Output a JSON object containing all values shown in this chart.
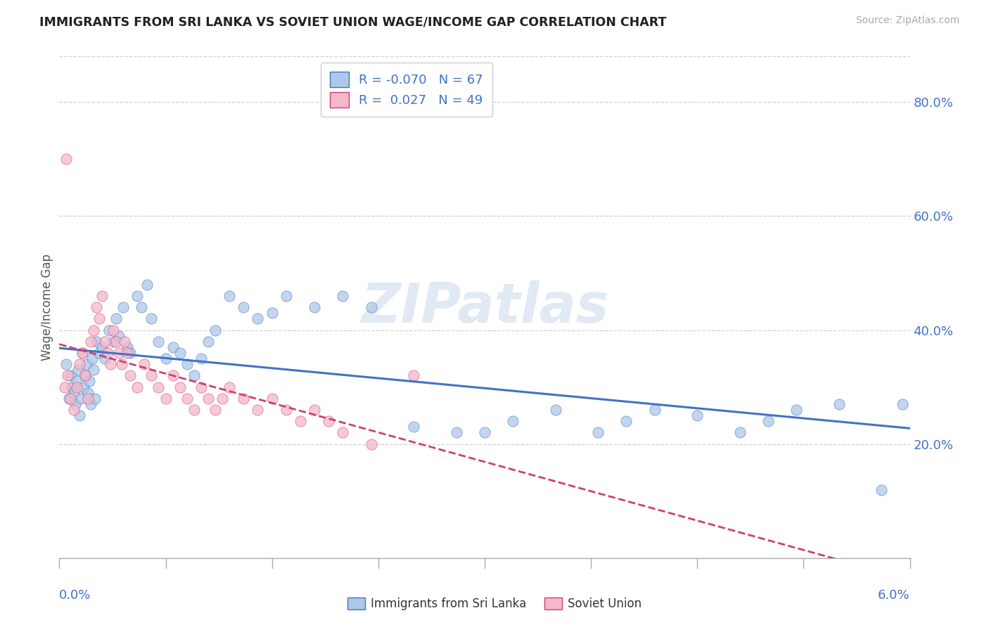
{
  "title": "IMMIGRANTS FROM SRI LANKA VS SOVIET UNION WAGE/INCOME GAP CORRELATION CHART",
  "source": "Source: ZipAtlas.com",
  "ylabel": "Wage/Income Gap",
  "watermark": "ZIPatlas",
  "legend_entries": [
    {
      "label": "Immigrants from Sri Lanka",
      "R": -0.07,
      "N": 67,
      "color": "#adc8e8",
      "line_color": "#4472c4"
    },
    {
      "label": "Soviet Union",
      "R": 0.027,
      "N": 49,
      "color": "#f4b8c8",
      "line_color": "#d47090"
    }
  ],
  "xlim": [
    0.0,
    6.0
  ],
  "ylim": [
    0.0,
    88.0
  ],
  "ytick_vals": [
    20.0,
    40.0,
    60.0,
    80.0
  ],
  "ytick_labels": [
    "20.0%",
    "40.0%",
    "60.0%",
    "80.0%"
  ],
  "sri_lanka_x": [
    0.05,
    0.07,
    0.08,
    0.09,
    0.1,
    0.11,
    0.12,
    0.13,
    0.14,
    0.15,
    0.16,
    0.17,
    0.18,
    0.19,
    0.2,
    0.21,
    0.22,
    0.23,
    0.24,
    0.25,
    0.26,
    0.28,
    0.3,
    0.32,
    0.35,
    0.38,
    0.4,
    0.42,
    0.45,
    0.48,
    0.5,
    0.55,
    0.58,
    0.62,
    0.65,
    0.7,
    0.75,
    0.8,
    0.85,
    0.9,
    0.95,
    1.0,
    1.05,
    1.1,
    1.2,
    1.3,
    1.4,
    1.5,
    1.6,
    1.8,
    2.0,
    2.2,
    2.5,
    2.8,
    3.0,
    3.2,
    3.5,
    3.8,
    4.0,
    4.2,
    4.5,
    4.8,
    5.0,
    5.2,
    5.5,
    5.8,
    5.95
  ],
  "sri_lanka_y": [
    34.0,
    28.0,
    32.0,
    30.0,
    29.0,
    27.0,
    31.0,
    33.0,
    25.0,
    28.0,
    36.0,
    30.0,
    32.0,
    34.0,
    29.0,
    31.0,
    27.0,
    35.0,
    33.0,
    28.0,
    38.0,
    36.0,
    37.0,
    35.0,
    40.0,
    38.0,
    42.0,
    39.0,
    44.0,
    37.0,
    36.0,
    46.0,
    44.0,
    48.0,
    42.0,
    38.0,
    35.0,
    37.0,
    36.0,
    34.0,
    32.0,
    35.0,
    38.0,
    40.0,
    46.0,
    44.0,
    42.0,
    43.0,
    46.0,
    44.0,
    46.0,
    44.0,
    23.0,
    22.0,
    22.0,
    24.0,
    26.0,
    22.0,
    24.0,
    26.0,
    25.0,
    22.0,
    24.0,
    26.0,
    27.0,
    12.0,
    27.0
  ],
  "soviet_x": [
    0.04,
    0.06,
    0.08,
    0.1,
    0.12,
    0.14,
    0.16,
    0.18,
    0.2,
    0.22,
    0.24,
    0.26,
    0.28,
    0.3,
    0.32,
    0.34,
    0.36,
    0.38,
    0.4,
    0.42,
    0.44,
    0.46,
    0.48,
    0.5,
    0.55,
    0.6,
    0.65,
    0.7,
    0.75,
    0.8,
    0.85,
    0.9,
    0.95,
    1.0,
    1.05,
    1.1,
    1.15,
    1.2,
    1.3,
    1.4,
    1.5,
    1.6,
    1.7,
    1.8,
    1.9,
    2.0,
    2.2,
    2.5,
    0.05
  ],
  "soviet_y": [
    30.0,
    32.0,
    28.0,
    26.0,
    30.0,
    34.0,
    36.0,
    32.0,
    28.0,
    38.0,
    40.0,
    44.0,
    42.0,
    46.0,
    38.0,
    36.0,
    34.0,
    40.0,
    38.0,
    36.0,
    34.0,
    38.0,
    36.0,
    32.0,
    30.0,
    34.0,
    32.0,
    30.0,
    28.0,
    32.0,
    30.0,
    28.0,
    26.0,
    30.0,
    28.0,
    26.0,
    28.0,
    30.0,
    28.0,
    26.0,
    28.0,
    26.0,
    24.0,
    26.0,
    24.0,
    22.0,
    20.0,
    32.0,
    70.0
  ],
  "sri_lanka_scatter_color": "#adc8e8",
  "soviet_scatter_color": "#f4b8c8",
  "sri_lanka_line_color": "#4472c4",
  "soviet_line_color": "#d04070",
  "background_color": "#ffffff",
  "grid_color": "#d0d0d0",
  "title_color": "#222222",
  "legend_text_color": "#4472c4",
  "axis_label_color": "#4472c4",
  "ylabel_color": "#555555"
}
